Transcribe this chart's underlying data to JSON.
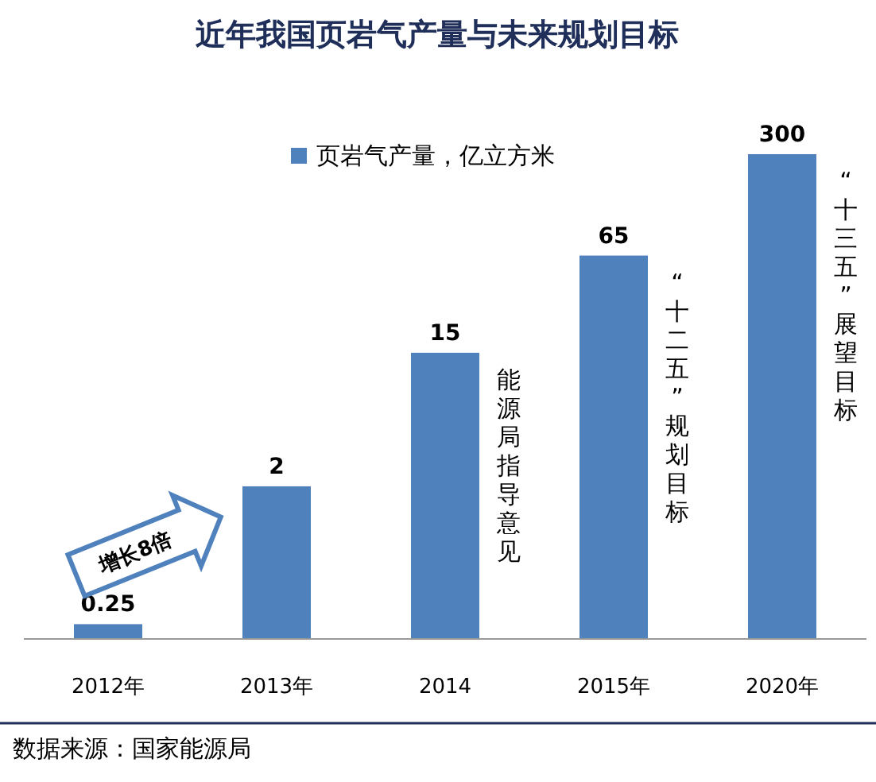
{
  "chart_data": {
    "type": "bar",
    "title": "近年我国页岩气产量与未来规划目标",
    "categories": [
      "2012年",
      "2013年",
      "2014",
      "2015年",
      "2020年"
    ],
    "series": [
      {
        "name": "页岩气产量，亿立方米",
        "color": "#4f81bd",
        "values": [
          0.25,
          2,
          15,
          65,
          300
        ]
      }
    ],
    "log": true,
    "ylim": [
      0.2,
      300
    ],
    "tick_labels": "x",
    "data_labels": true,
    "legend": "top",
    "annotations": [
      "增长8倍",
      {
        "text": "能源局指导意见",
        "x": "2014",
        "y": 15
      },
      "“十二五”规划目标",
      "“十三五”展望目标",
      "数据来源：国家能源局"
    ]
  }
}
